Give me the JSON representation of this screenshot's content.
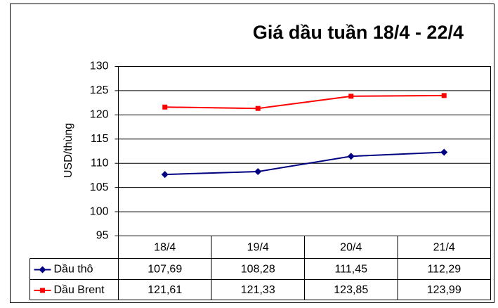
{
  "chart_data": {
    "type": "line",
    "title": "Giá dầu tuần 18/4 - 22/4",
    "y_label": "USD/thùng",
    "categories": [
      "18/4",
      "19/4",
      "20/4",
      "21/4"
    ],
    "series": [
      {
        "name": "Dầu thô",
        "color": "#000080",
        "marker": "diamond",
        "values": [
          107.69,
          108.28,
          111.45,
          112.29
        ],
        "value_labels": [
          "107,69",
          "108,28",
          "111,45",
          "112,29"
        ]
      },
      {
        "name": "Dầu Brent",
        "color": "#ff0000",
        "marker": "square",
        "values": [
          121.61,
          121.33,
          123.85,
          123.99
        ],
        "value_labels": [
          "121,61",
          "121,33",
          "123,85",
          "123,99"
        ]
      }
    ],
    "ylim": [
      95,
      130
    ],
    "yticks": [
      95,
      100,
      105,
      110,
      115,
      120,
      125,
      130
    ],
    "grid": true
  }
}
